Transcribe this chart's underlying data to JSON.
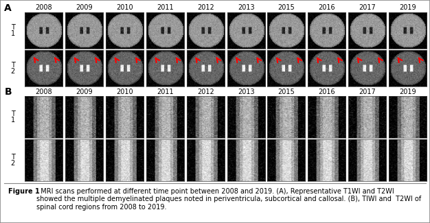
{
  "years_A": [
    "2008",
    "2009",
    "2010",
    "2011",
    "2012",
    "2013",
    "2015",
    "2016",
    "2017",
    "2019"
  ],
  "years_B": [
    "2008",
    "2009",
    "2010",
    "2011",
    "2012",
    "2013",
    "2015",
    "2016",
    "2017",
    "2019"
  ],
  "section_A_label": "A",
  "section_B_label": "B",
  "T1_label": "T\n1",
  "T2_label": "T\n2",
  "caption_bold": "Figure 1",
  "caption_normal": "  MRI scans performed at different time point between 2008 and 2019. (A), Representative T1WI and T2WI\nshowed the multiple demyelinated plaques noted in periventricula, subcortical and callosal. (B), TIWI and  T2WI of\nspinal cord regions from 2008 to 2019.",
  "border_color": "#888888",
  "bg_color": "#ffffff",
  "mri_bg_axial_T1": "#aaaaaa",
  "mri_bg_axial_T2_dark": "#222222",
  "mri_bg_axial_T2_light": "#666666",
  "mri_bg_spinal_T1": "#555555",
  "mri_bg_spinal_T2": "#777777",
  "arrow_color": "#cc0000",
  "label_fontsize": 9,
  "year_fontsize": 7,
  "caption_fontsize": 7
}
